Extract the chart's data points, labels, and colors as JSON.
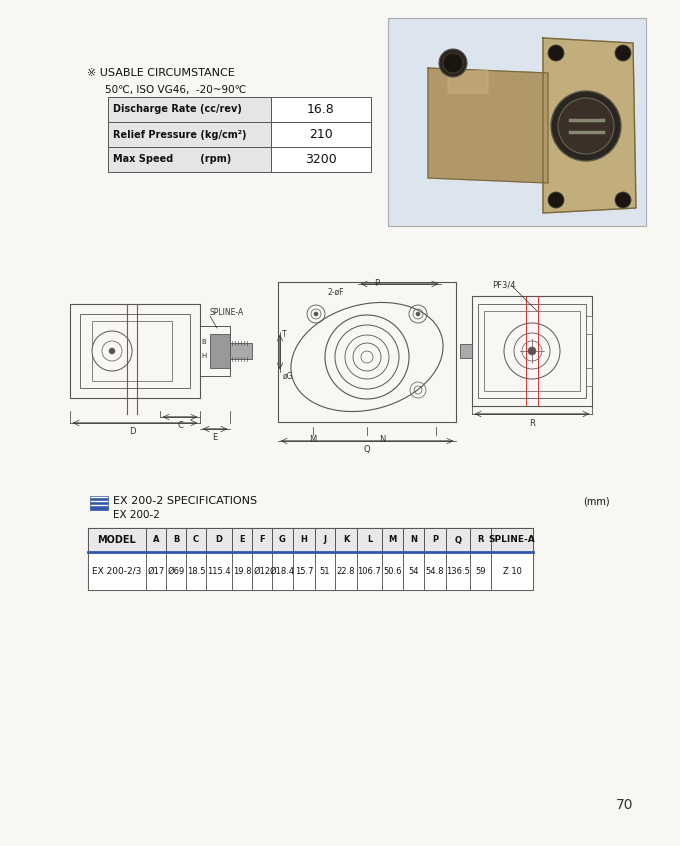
{
  "bg_color": "#f8f7f4",
  "title_usable": "※ USABLE CIRCUMSTANCE",
  "subtitle_temp": "50℃, ISO VG46,  -20~90℃",
  "table1_headers": [
    "Discharge Rate (cc/rev)",
    "Relief Pressure (kg/cm²)",
    "Max Speed        (rpm)"
  ],
  "table1_values": [
    "16.8",
    "210",
    "3200"
  ],
  "spec_title1": "EX 200-2 SPECIFICATIONS",
  "spec_title2": "EX 200-2",
  "unit_label": "(mm)",
  "table2_headers": [
    "MODEL",
    "A",
    "B",
    "C",
    "D",
    "E",
    "F",
    "G",
    "H",
    "J",
    "K",
    "L",
    "M",
    "N",
    "P",
    "Q",
    "R",
    "SPLINE-A"
  ],
  "table2_row": [
    "EX 200-2/3",
    "Ø17",
    "Ø69",
    "18.5",
    "115.4",
    "19.8",
    "Ø12",
    "Ø18.4",
    "15.7",
    "51",
    "22.8",
    "106.7",
    "50.6",
    "54",
    "54.8",
    "136.5",
    "59",
    "Z 10"
  ],
  "page_number": "70",
  "line_color": "#555555",
  "dim_color": "#333333",
  "red_color": "#cc3333",
  "blue_color": "#3355aa"
}
